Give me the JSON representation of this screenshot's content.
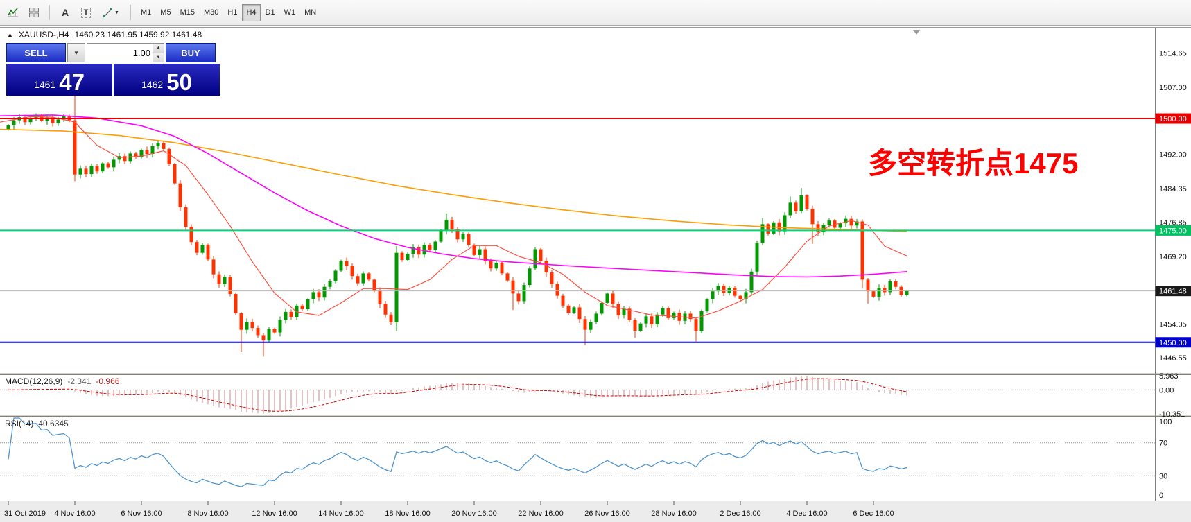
{
  "toolbar": {
    "font_tool_glyph": "A",
    "text_tool_glyph": "T",
    "dropdown_glyph": "▼",
    "timeframes": [
      "M1",
      "M5",
      "M15",
      "M30",
      "H1",
      "H4",
      "D1",
      "W1",
      "MN"
    ],
    "active_timeframe": "H4",
    "tools": [
      "indicators-icon",
      "tile-windows-icon",
      "font-tool-icon",
      "text-label-tool-icon",
      "drawing-tools-icon"
    ]
  },
  "chart": {
    "collapse_glyph": "▲",
    "symbol_period": "XAUUSD-,H4",
    "ohlc": "1460.23 1461.95 1459.92 1461.48"
  },
  "trade_panel": {
    "sell_label": "SELL",
    "buy_label": "BUY",
    "volume": "1.00",
    "combo_glyph": "▼",
    "spin_up_glyph": "▲",
    "spin_down_glyph": "▼",
    "sell_price_small": "1461",
    "sell_price_big": "47",
    "buy_price_small": "1462",
    "buy_price_big": "50"
  },
  "annotation": {
    "text": "多空转折点1475",
    "color": "#ff0000"
  },
  "price_axis": {
    "ticks": [
      {
        "text": "1514.65",
        "price": 1514.65
      },
      {
        "text": "1507.00",
        "price": 1507.0
      },
      {
        "text": "1492.00",
        "price": 1492.0
      },
      {
        "text": "1484.35",
        "price": 1484.35
      },
      {
        "text": "1476.85",
        "price": 1476.85
      },
      {
        "text": "1469.20",
        "price": 1469.2
      },
      {
        "text": "1454.05",
        "price": 1454.05
      },
      {
        "text": "1446.55",
        "price": 1446.55
      }
    ],
    "badges": [
      {
        "text": "1500.00",
        "price": 1500.0,
        "bg": "#e60000"
      },
      {
        "text": "1475.00",
        "price": 1475.0,
        "bg": "#00c060"
      },
      {
        "text": "1461.48",
        "price": 1461.48,
        "bg": "#1a1a1a"
      },
      {
        "text": "1450.00",
        "price": 1450.0,
        "bg": "#0000cc"
      }
    ]
  },
  "hlines": [
    {
      "price": 1500.0,
      "color": "#e60000",
      "width": 2
    },
    {
      "price": 1475.0,
      "color": "#00d878",
      "width": 2
    },
    {
      "price": 1461.48,
      "color": "#b4b4b4",
      "width": 1
    },
    {
      "price": 1450.0,
      "color": "#0000dd",
      "width": 2
    }
  ],
  "time_axis": {
    "labels": [
      "31 Oct 2019",
      "4 Nov 16:00",
      "6 Nov 16:00",
      "8 Nov 16:00",
      "12 Nov 16:00",
      "14 Nov 16:00",
      "18 Nov 16:00",
      "20 Nov 16:00",
      "22 Nov 16:00",
      "26 Nov 16:00",
      "28 Nov 16:00",
      "2 Dec 16:00",
      "4 Dec 16:00",
      "6 Dec 16:00"
    ],
    "bars": [
      0,
      12,
      24,
      36,
      48,
      60,
      72,
      84,
      96,
      108,
      120,
      132,
      144,
      156
    ]
  },
  "macd_panel": {
    "label": "MACD(12,26,9)",
    "value": "-2.341",
    "signal": "-0.966",
    "scale": [
      {
        "text": "5.963",
        "v": 5.963
      },
      {
        "text": "0.00",
        "v": 0
      },
      {
        "text": "-10.351",
        "v": -10.351
      }
    ]
  },
  "rsi_panel": {
    "label": "RSI(14)",
    "value": "40.6345",
    "scale": [
      {
        "text": "100",
        "v": 100
      },
      {
        "text": "70",
        "v": 70
      },
      {
        "text": "30",
        "v": 30
      },
      {
        "text": "0",
        "v": 0
      }
    ],
    "levels": [
      70,
      30
    ]
  },
  "chart_data": {
    "type": "candlestick",
    "symbol": "XAUUSD-",
    "timeframe": "H4",
    "title": "XAUUSD-,H4",
    "ohlc_display": {
      "open": 1460.23,
      "high": 1461.95,
      "low": 1459.92,
      "close": 1461.48
    },
    "price_axis_range": [
      1443.3,
      1520.3
    ],
    "up_color": "#009a00",
    "down_color": "#ff3300",
    "first_open": 1497.6,
    "closes": [
      1498.5,
      1499.6,
      1500.3,
      1499.2,
      1499.9,
      1500.8,
      1499.5,
      1500.2,
      1499.0,
      1499.8,
      1500.5,
      1499.6,
      1487.5,
      1488.8,
      1487.6,
      1489.4,
      1488.2,
      1490.0,
      1489.1,
      1490.8,
      1491.6,
      1490.5,
      1492.2,
      1491.4,
      1493.0,
      1492.1,
      1493.8,
      1494.5,
      1493.2,
      1489.8,
      1485.5,
      1480.2,
      1475.8,
      1472.4,
      1470.0,
      1471.8,
      1468.5,
      1465.2,
      1463.0,
      1464.6,
      1460.8,
      1456.5,
      1452.8,
      1454.6,
      1453.2,
      1451.6,
      1450.4,
      1453.0,
      1452.2,
      1455.0,
      1456.8,
      1455.6,
      1458.2,
      1457.4,
      1459.6,
      1461.2,
      1460.0,
      1462.4,
      1463.6,
      1466.0,
      1468.2,
      1467.0,
      1464.8,
      1463.2,
      1465.4,
      1464.0,
      1461.5,
      1458.6,
      1456.2,
      1454.5,
      1470.0,
      1468.4,
      1469.8,
      1471.2,
      1469.6,
      1471.8,
      1470.6,
      1472.5,
      1475.0,
      1477.4,
      1475.2,
      1473.0,
      1474.2,
      1471.8,
      1469.5,
      1470.8,
      1468.2,
      1466.5,
      1467.8,
      1465.4,
      1463.8,
      1460.9,
      1459.2,
      1462.8,
      1466.5,
      1470.8,
      1468.2,
      1465.6,
      1463.0,
      1460.4,
      1458.2,
      1456.6,
      1457.8,
      1455.2,
      1452.8,
      1454.6,
      1456.4,
      1458.8,
      1460.9,
      1458.5,
      1456.0,
      1457.5,
      1455.0,
      1452.6,
      1454.2,
      1455.8,
      1454.0,
      1456.2,
      1457.6,
      1455.4,
      1456.6,
      1454.8,
      1456.4,
      1455.2,
      1452.5,
      1457.0,
      1459.6,
      1461.4,
      1462.6,
      1461.0,
      1462.2,
      1460.4,
      1459.6,
      1461.2,
      1465.8,
      1472.2,
      1476.4,
      1474.3,
      1476.8,
      1474.8,
      1478.4,
      1481.2,
      1479.3,
      1482.8,
      1479.8,
      1476.4,
      1474.6,
      1476.2,
      1477.2,
      1475.6,
      1476.6,
      1477.6,
      1476.1,
      1477.0,
      1464.0,
      1461.4,
      1460.2,
      1462.2,
      1461.2,
      1463.6,
      1462.4,
      1460.6,
      1461.5
    ],
    "wick_overrides": {
      "12": {
        "h": 1505.2,
        "l": 1486.0
      },
      "42": {
        "l": 1447.8
      },
      "46": {
        "l": 1446.8
      },
      "70": {
        "h": 1471.5,
        "l": 1452.5
      },
      "79": {
        "h": 1478.8
      },
      "91": {
        "l": 1457.2
      },
      "104": {
        "l": 1449.4
      },
      "113": {
        "l": 1451.0
      },
      "124": {
        "l": 1450.2
      },
      "136": {
        "h": 1477.8
      },
      "141": {
        "h": 1482.6
      },
      "143": {
        "h": 1484.5
      },
      "145": {
        "l": 1472.0
      },
      "154": {
        "l": 1462.0
      },
      "155": {
        "l": 1458.6
      }
    },
    "ma_lines": [
      {
        "name": "ma-slow",
        "color": "#ff9c00",
        "width": 1.6,
        "points": [
          [
            -1.5,
            1497.6
          ],
          [
            10,
            1497.2
          ],
          [
            20,
            1496.2
          ],
          [
            30,
            1494.6
          ],
          [
            40,
            1492.4
          ],
          [
            50,
            1489.9
          ],
          [
            60,
            1487.4
          ],
          [
            70,
            1485.0
          ],
          [
            80,
            1483.0
          ],
          [
            90,
            1481.2
          ],
          [
            100,
            1479.6
          ],
          [
            110,
            1478.2
          ],
          [
            120,
            1477.1
          ],
          [
            130,
            1476.2
          ],
          [
            140,
            1475.6
          ],
          [
            150,
            1475.2
          ],
          [
            162,
            1474.8
          ]
        ]
      },
      {
        "name": "ma-medium",
        "color": "#ff00ff",
        "width": 1.6,
        "points": [
          [
            -1.5,
            1500.6
          ],
          [
            8,
            1500.8
          ],
          [
            16,
            1500.1
          ],
          [
            24,
            1498.4
          ],
          [
            30,
            1496.0
          ],
          [
            36,
            1492.2
          ],
          [
            42,
            1487.8
          ],
          [
            48,
            1483.4
          ],
          [
            54,
            1479.4
          ],
          [
            60,
            1476.0
          ],
          [
            66,
            1473.2
          ],
          [
            72,
            1471.2
          ],
          [
            78,
            1469.8
          ],
          [
            84,
            1468.7
          ],
          [
            90,
            1468.0
          ],
          [
            96,
            1467.5
          ],
          [
            102,
            1467.0
          ],
          [
            108,
            1466.6
          ],
          [
            114,
            1466.2
          ],
          [
            120,
            1465.8
          ],
          [
            126,
            1465.4
          ],
          [
            132,
            1465.0
          ],
          [
            138,
            1464.7
          ],
          [
            144,
            1464.6
          ],
          [
            150,
            1464.8
          ],
          [
            156,
            1465.2
          ],
          [
            162,
            1465.8
          ]
        ]
      },
      {
        "name": "ma-fast",
        "color": "#ff5040",
        "width": 1.2,
        "points": [
          [
            -1.5,
            1499.2
          ],
          [
            4,
            1500.4
          ],
          [
            8,
            1500.3
          ],
          [
            12,
            1499.2
          ],
          [
            16,
            1494.0
          ],
          [
            20,
            1491.3
          ],
          [
            24,
            1491.6
          ],
          [
            28,
            1492.8
          ],
          [
            32,
            1489.5
          ],
          [
            36,
            1483.0
          ],
          [
            40,
            1476.0
          ],
          [
            44,
            1468.0
          ],
          [
            48,
            1461.0
          ],
          [
            52,
            1456.8
          ],
          [
            56,
            1456.0
          ],
          [
            60,
            1458.8
          ],
          [
            64,
            1462.0
          ],
          [
            68,
            1462.0
          ],
          [
            72,
            1461.8
          ],
          [
            76,
            1464.0
          ],
          [
            80,
            1468.5
          ],
          [
            84,
            1471.6
          ],
          [
            88,
            1471.6
          ],
          [
            92,
            1469.2
          ],
          [
            96,
            1467.8
          ],
          [
            100,
            1465.2
          ],
          [
            104,
            1461.2
          ],
          [
            108,
            1458.2
          ],
          [
            112,
            1457.2
          ],
          [
            116,
            1456.1
          ],
          [
            120,
            1455.8
          ],
          [
            124,
            1455.4
          ],
          [
            128,
            1457.0
          ],
          [
            132,
            1459.2
          ],
          [
            136,
            1461.8
          ],
          [
            140,
            1466.8
          ],
          [
            144,
            1472.6
          ],
          [
            148,
            1476.0
          ],
          [
            152,
            1477.2
          ],
          [
            155,
            1476.2
          ],
          [
            158,
            1471.5
          ],
          [
            162,
            1469.3
          ]
        ]
      }
    ],
    "indicators": {
      "macd": {
        "fast": 12,
        "slow": 26,
        "signal": 9,
        "hist_color": "#d89a9a",
        "signal_color": "#d40000",
        "range": [
          -10.351,
          5.963
        ]
      },
      "rsi": {
        "period": 14,
        "color": "#4f94cd",
        "levels": [
          70,
          30
        ],
        "range": [
          0,
          100
        ]
      }
    }
  }
}
